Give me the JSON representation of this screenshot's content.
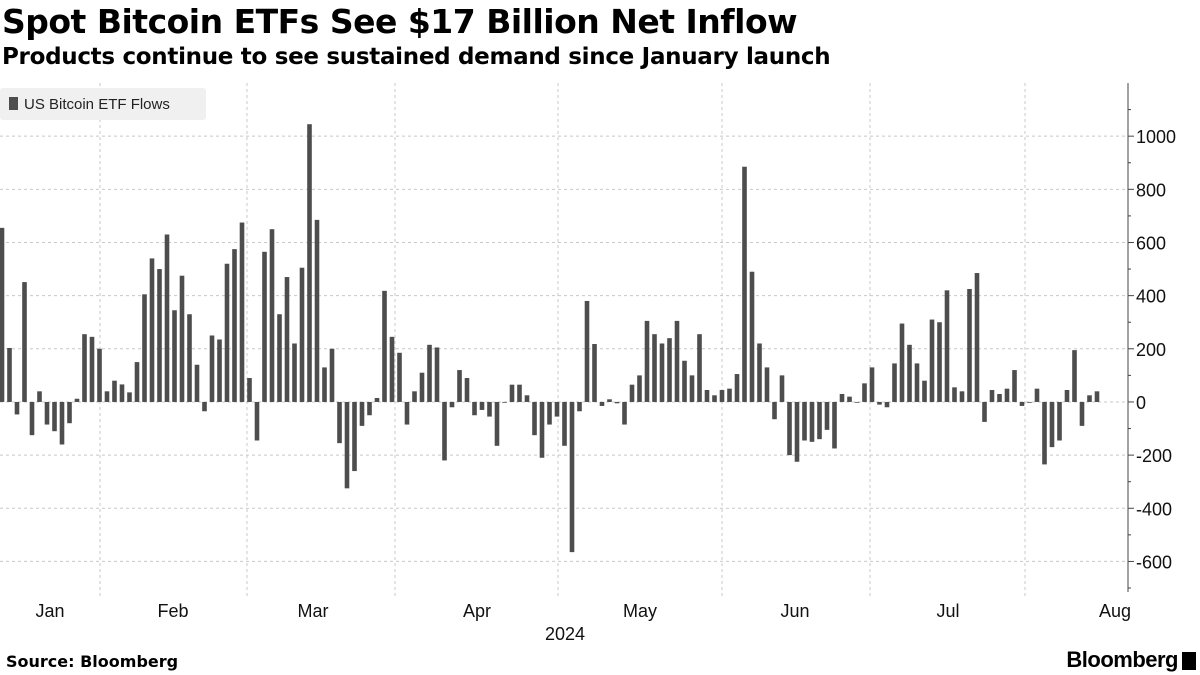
{
  "title": "Spot Bitcoin ETFs See $17 Billion Net Inflow",
  "subtitle": "Products continue to see sustained demand since January launch",
  "source": "Source: Bloomberg",
  "logo": "Bloomberg",
  "chart_data": {
    "type": "bar",
    "legend": {
      "entries": [
        "US Bitcoin ETF Flows"
      ],
      "placement": "top-left"
    },
    "series": [
      {
        "name": "US Bitcoin ETF Flows",
        "color": "#4d4d4d",
        "values": [
          655,
          203,
          -47,
          451,
          -125,
          40,
          -85,
          -110,
          -160,
          -80,
          12,
          255,
          245,
          200,
          40,
          80,
          66,
          36,
          150,
          405,
          540,
          500,
          630,
          345,
          475,
          330,
          140,
          -35,
          250,
          235,
          520,
          575,
          675,
          90,
          -145,
          565,
          650,
          330,
          470,
          220,
          505,
          1045,
          685,
          130,
          200,
          -155,
          -325,
          -260,
          -90,
          -50,
          15,
          418,
          245,
          185,
          -85,
          40,
          110,
          215,
          205,
          -220,
          -20,
          120,
          90,
          -50,
          -30,
          -55,
          -165,
          0,
          65,
          65,
          25,
          -125,
          -210,
          -85,
          -55,
          -165,
          -565,
          -35,
          380,
          218,
          -15,
          10,
          -5,
          -85,
          65,
          100,
          305,
          255,
          220,
          240,
          305,
          155,
          100,
          255,
          45,
          25,
          45,
          50,
          105,
          885,
          490,
          220,
          130,
          -65,
          100,
          -200,
          -225,
          -145,
          -150,
          -140,
          -105,
          -175,
          30,
          20,
          0,
          70,
          130,
          -10,
          -20,
          145,
          295,
          215,
          145,
          80,
          310,
          300,
          420,
          55,
          40,
          425,
          485,
          -75,
          45,
          30,
          50,
          120,
          -15,
          0,
          50,
          -235,
          -170,
          -145,
          45,
          195,
          -90,
          25,
          40
        ]
      }
    ],
    "x_tick_labels": [
      "Jan",
      "Feb",
      "Mar",
      "Apr",
      "May",
      "Jun",
      "Jul",
      "Aug"
    ],
    "x_axis_year": "2024",
    "y_ticks": [
      -600,
      -400,
      -200,
      0,
      200,
      400,
      600,
      800,
      1000
    ],
    "ylim": [
      -715,
      1200
    ],
    "y_axis_side": "right",
    "grid": true
  }
}
